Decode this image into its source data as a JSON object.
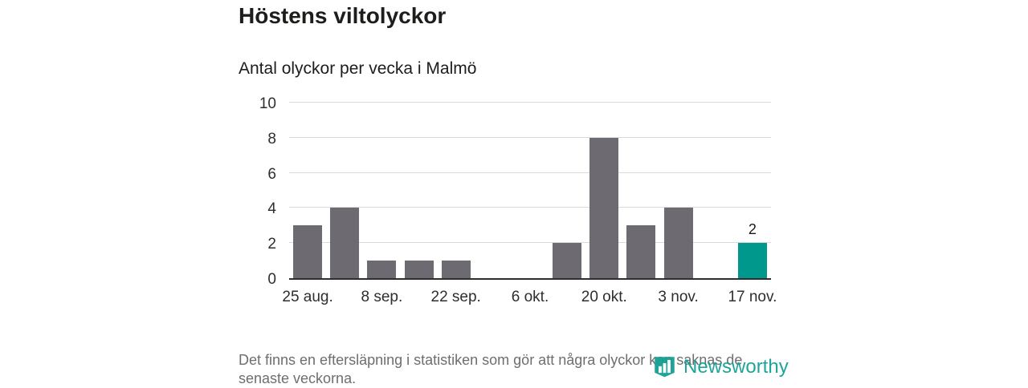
{
  "header": {
    "title": "Höstens viltolyckor",
    "subtitle": "Antal olyckor per vecka i Malmö"
  },
  "footer": {
    "line1": "Det finns en eftersläpning i statistiken som gör att några olyckor kan saknas de",
    "line2": "senaste veckorna."
  },
  "branding": {
    "name": "Newsworthy",
    "icon": "newsworthy-shield-bars-icon",
    "color": "#14a094"
  },
  "chart_data": {
    "type": "bar",
    "title": "Höstens viltolyckor",
    "subtitle": "Antal olyckor per vecka i Malmö",
    "values": [
      3,
      4,
      1,
      1,
      1,
      0,
      0,
      2,
      8,
      3,
      4,
      0,
      2
    ],
    "x_tick_positions": [
      0,
      2,
      4,
      6,
      8,
      10,
      12
    ],
    "x_tick_labels": [
      "25 aug.",
      "8 sep.",
      "22 sep.",
      "6 okt.",
      "20 okt.",
      "3 nov.",
      "17 nov."
    ],
    "y_ticks": [
      0,
      2,
      4,
      6,
      8,
      10
    ],
    "ylim": [
      0,
      10
    ],
    "bar_color": "#6e6a72",
    "highlight_color": "#00988d",
    "highlight_index": 12,
    "value_labels": [
      {
        "index": 12,
        "text": "2"
      }
    ],
    "grid": "horizontal",
    "legend": "none"
  }
}
